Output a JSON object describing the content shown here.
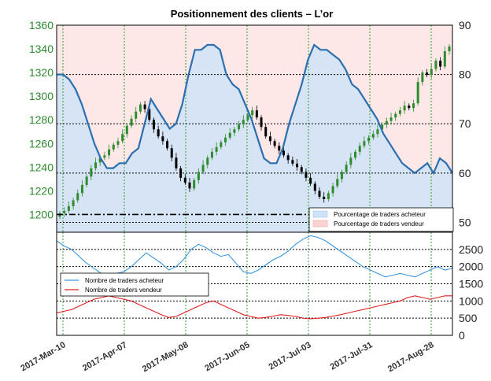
{
  "colors": {
    "buy_fill": "#cfe3f7",
    "sell_fill": "#fbd3d3",
    "pct_line": "#2a6fb0",
    "buy_line": "#3a96e0",
    "sell_line": "#e02020",
    "grid_green": "#2ca02c",
    "bull": "#2e8b2e",
    "bear": "#000000",
    "tick_green": "#2e8b2e"
  },
  "chart_data": {
    "type": "line",
    "title": "Positionnement des clients – L’or",
    "x_labels": [
      "2017-Mar-10",
      "2017-Apr-07",
      "2017-May-08",
      "2017-Jun-05",
      "2017-Jul-03",
      "2017-Jul-31",
      "2017-Aug-28"
    ],
    "top_panel": {
      "price_axis": {
        "ylim": [
          1185,
          1360
        ],
        "ticks": [
          1200,
          1220,
          1240,
          1260,
          1280,
          1300,
          1320,
          1340,
          1360
        ]
      },
      "pct_axis": {
        "ylim": [
          48,
          90
        ],
        "ticks": [
          50,
          60,
          70,
          80,
          90
        ]
      },
      "support_level": 1200,
      "pct_traders_long": [
        80,
        80,
        79,
        77,
        74,
        70,
        66,
        63,
        61,
        61,
        62,
        62,
        64,
        65,
        70,
        75,
        73,
        71,
        69,
        70,
        74,
        80,
        85,
        85,
        86,
        86,
        85,
        80,
        78,
        77,
        74,
        71,
        67,
        63,
        62,
        62,
        65,
        70,
        74,
        78,
        83,
        86,
        85,
        85,
        84,
        83,
        81,
        78,
        77,
        75,
        73,
        71,
        68,
        66,
        64,
        62,
        61,
        60,
        61,
        62,
        60,
        63,
        62,
        60
      ],
      "price_close": [
        1201,
        1203,
        1207,
        1212,
        1218,
        1225,
        1232,
        1239,
        1244,
        1248,
        1250,
        1255,
        1259,
        1262,
        1268,
        1275,
        1281,
        1287,
        1293,
        1289,
        1280,
        1272,
        1266,
        1262,
        1256,
        1248,
        1239,
        1231,
        1227,
        1222,
        1229,
        1236,
        1242,
        1248,
        1253,
        1257,
        1261,
        1265,
        1269,
        1272,
        1276,
        1280,
        1284,
        1288,
        1282,
        1274,
        1266,
        1262,
        1258,
        1254,
        1250,
        1246,
        1243,
        1240,
        1236,
        1231,
        1226,
        1220,
        1215,
        1213,
        1218,
        1224,
        1230,
        1236,
        1242,
        1248,
        1253,
        1258,
        1262,
        1265,
        1268,
        1272,
        1276,
        1279,
        1282,
        1285,
        1288,
        1292,
        1290,
        1294,
        1312,
        1320,
        1318,
        1323,
        1330,
        1325,
        1338,
        1342
      ],
      "series": [
        {
          "name": "Pourcentage de traders acheteur"
        },
        {
          "name": "Pourcentage de traders vendeur"
        }
      ]
    },
    "bottom_panel": {
      "ylim": [
        0,
        3000
      ],
      "ticks": [
        0,
        500,
        1000,
        1500,
        2000,
        2500
      ],
      "series": [
        {
          "name": "Nombre de traders acheteur",
          "values": [
            2750,
            2600,
            2500,
            2300,
            2100,
            1950,
            1800,
            1750,
            1800,
            1850,
            2000,
            2200,
            2400,
            2250,
            2100,
            1900,
            2000,
            2200,
            2500,
            2650,
            2550,
            2400,
            2300,
            2350,
            2100,
            1850,
            1800,
            1900,
            2050,
            2200,
            2300,
            2450,
            2650,
            2800,
            2900,
            2850,
            2750,
            2600,
            2450,
            2300,
            2150,
            2000,
            1900,
            1800,
            1700,
            1750,
            1800,
            1750,
            1700,
            1800,
            1900,
            2000,
            1900,
            1950
          ]
        },
        {
          "name": "Nombre de traders vendeur",
          "values": [
            650,
            700,
            750,
            850,
            950,
            1050,
            1100,
            1150,
            1100,
            1050,
            1000,
            900,
            800,
            700,
            600,
            520,
            550,
            650,
            750,
            850,
            950,
            1000,
            900,
            800,
            700,
            600,
            550,
            500,
            520,
            560,
            600,
            580,
            550,
            500,
            480,
            500,
            520,
            560,
            600,
            650,
            700,
            750,
            800,
            850,
            900,
            950,
            1000,
            1100,
            1150,
            1100,
            1050,
            1100,
            1150,
            1150
          ]
        }
      ]
    }
  }
}
